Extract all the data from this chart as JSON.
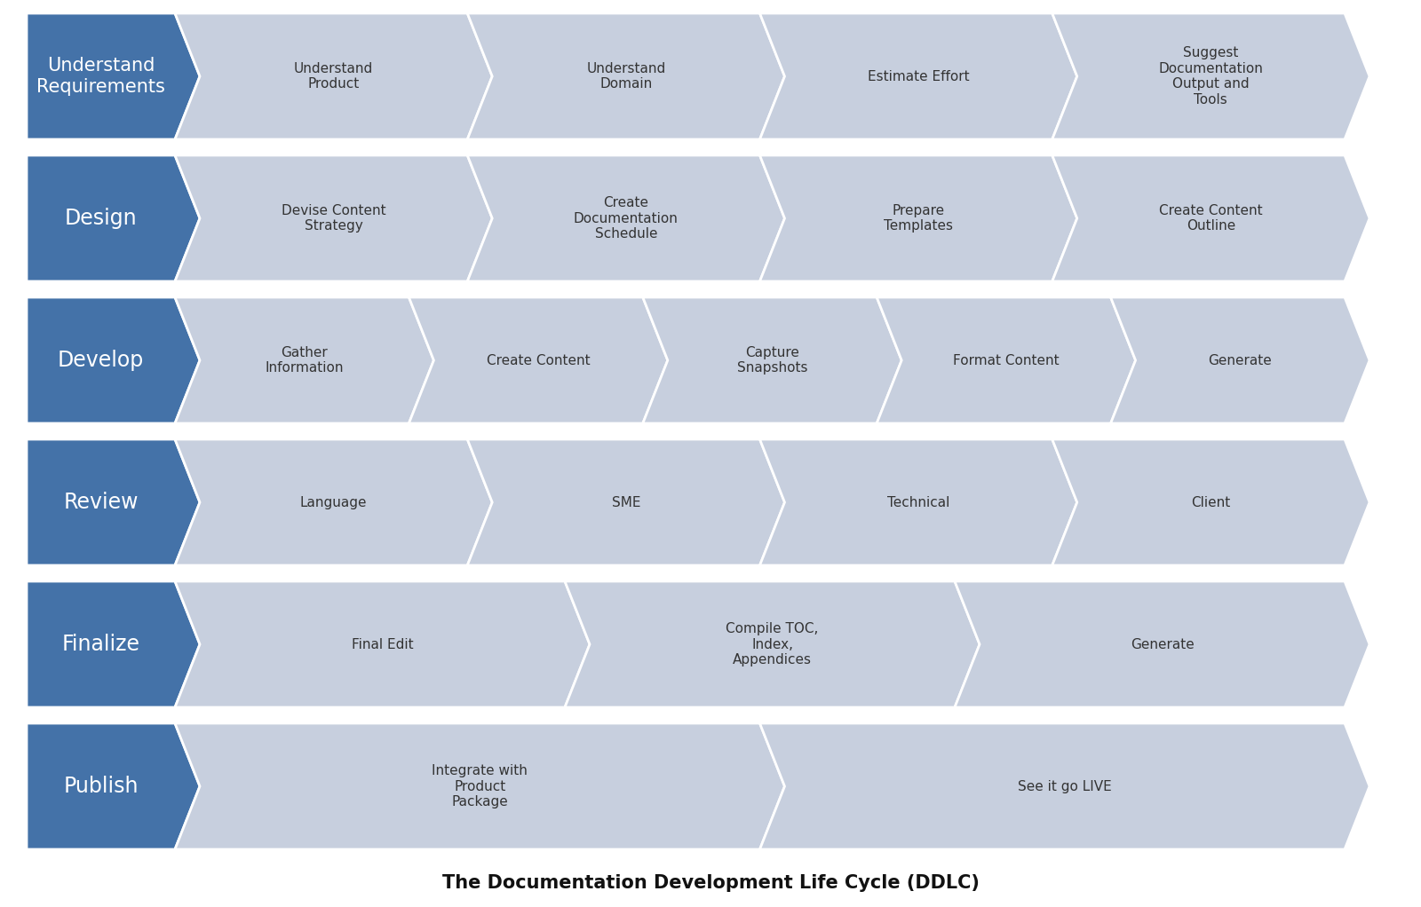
{
  "title": "The Documentation Development Life Cycle (DDLC)",
  "title_fontsize": 15,
  "background_color": "#ffffff",
  "dark_blue": "#4472a8",
  "light_blue": "#c7cfde",
  "light_blue2": "#bcc8db",
  "rows": [
    {
      "label": "Understand\nRequirements",
      "label_fontsize": 15,
      "steps": [
        "Understand\nProduct",
        "Understand\nDomain",
        "Estimate Effort",
        "Suggest\nDocumentation\nOutput and\nTools"
      ],
      "step_fontsize": 11
    },
    {
      "label": "Design",
      "label_fontsize": 17,
      "steps": [
        "Devise Content\nStrategy",
        "Create\nDocumentation\nSchedule",
        "Prepare\nTemplates",
        "Create Content\nOutline"
      ],
      "step_fontsize": 11
    },
    {
      "label": "Develop",
      "label_fontsize": 17,
      "steps": [
        "Gather\nInformation",
        "Create Content",
        "Capture\nSnapshots",
        "Format Content",
        "Generate"
      ],
      "step_fontsize": 11
    },
    {
      "label": "Review",
      "label_fontsize": 17,
      "steps": [
        "Language",
        "SME",
        "Technical",
        "Client"
      ],
      "step_fontsize": 11
    },
    {
      "label": "Finalize",
      "label_fontsize": 17,
      "steps": [
        "Final Edit",
        "Compile TOC,\nIndex,\nAppendices",
        "Generate"
      ],
      "step_fontsize": 11
    },
    {
      "label": "Publish",
      "label_fontsize": 17,
      "steps": [
        "Integrate with\nProduct\nPackage",
        "See it go LIVE"
      ],
      "step_fontsize": 11
    }
  ]
}
